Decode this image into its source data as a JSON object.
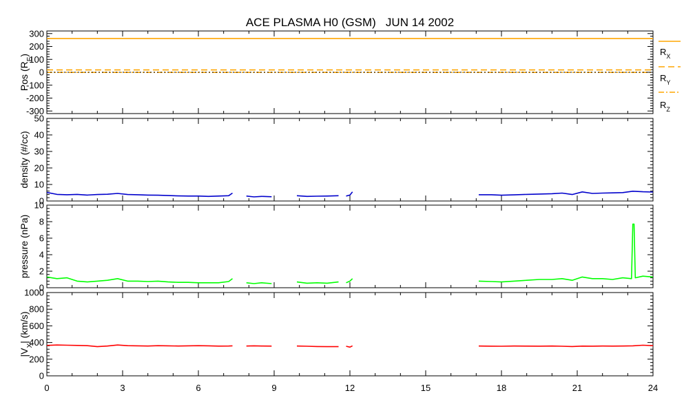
{
  "title": "ACE PLASMA H0 (GSM)   JUN 14 2002",
  "chart_data": [
    {
      "type": "line",
      "ylabel_main": "Pos (R",
      "ylabel_sub": "E",
      "ylabel_end": ")",
      "ylim": [
        -320,
        320
      ],
      "yticks": [
        -300,
        -200,
        -100,
        0,
        100,
        200,
        300
      ],
      "legend_placement": "right",
      "legend": [
        {
          "name": "R",
          "sub": "X",
          "style": "solid"
        },
        {
          "name": "R",
          "sub": "Y",
          "style": "dashed"
        },
        {
          "name": "R",
          "sub": "Z",
          "style": "dashdot"
        }
      ],
      "series": [
        {
          "name": "R_X",
          "color": "#ffa500",
          "style": "solid",
          "x": [
            0,
            24
          ],
          "y": [
            262,
            262
          ]
        },
        {
          "name": "R_Y",
          "color": "#ffa500",
          "style": "dashed",
          "x": [
            0,
            24
          ],
          "y": [
            18,
            18
          ]
        },
        {
          "name": "R_Z",
          "color": "#ffa500",
          "style": "dashdot",
          "x": [
            0,
            24
          ],
          "y": [
            -1,
            -1
          ]
        },
        {
          "name": "zero",
          "color": "#000000",
          "style": "dotted",
          "x": [
            0,
            24
          ],
          "y": [
            0,
            0
          ]
        }
      ]
    },
    {
      "type": "line",
      "ylabel_main": "density (#/cc)",
      "ylim": [
        0,
        50
      ],
      "yticks": [
        0,
        10,
        20,
        30,
        40,
        50
      ],
      "series": [
        {
          "color": "#0000cc",
          "segments": [
            {
              "x": [
                0.0,
                0.4,
                0.8,
                1.2,
                1.6,
                2.0,
                2.4,
                2.8,
                3.2,
                3.6,
                4.0,
                4.4,
                4.8,
                5.2,
                5.6,
                6.0,
                6.4,
                6.8,
                7.2,
                7.35
              ],
              "y": [
                5.2,
                4.0,
                3.8,
                4.0,
                3.6,
                3.9,
                4.1,
                4.6,
                3.9,
                3.8,
                3.6,
                3.5,
                3.3,
                3.1,
                3.0,
                3.0,
                2.8,
                3.0,
                3.2,
                4.8
              ]
            },
            {
              "x": [
                7.9,
                8.2,
                8.5,
                8.9
              ],
              "y": [
                3.0,
                2.5,
                2.8,
                2.6
              ]
            },
            {
              "x": [
                9.9,
                10.3,
                10.7,
                11.1,
                11.55
              ],
              "y": [
                3.2,
                2.8,
                2.9,
                3.0,
                3.2
              ]
            },
            {
              "x": [
                11.85,
                12.0,
                12.1
              ],
              "y": [
                3.0,
                3.6,
                5.5
              ]
            },
            {
              "x": [
                17.1,
                17.6,
                18.0,
                18.5,
                19.0,
                19.5,
                20.0,
                20.4,
                20.8,
                21.2,
                21.6,
                22.0,
                22.4,
                22.8,
                23.2,
                23.6,
                24.0
              ],
              "y": [
                3.8,
                3.8,
                3.5,
                3.7,
                4.0,
                4.2,
                4.4,
                4.8,
                3.9,
                5.5,
                4.6,
                4.8,
                4.9,
                5.1,
                5.9,
                5.6,
                5.4
              ]
            }
          ]
        }
      ]
    },
    {
      "type": "line",
      "ylabel_main": "pressure (nPa)",
      "ylim": [
        0,
        10
      ],
      "yticks": [
        0,
        2,
        4,
        6,
        8,
        10
      ],
      "series": [
        {
          "color": "#00ff00",
          "segments": [
            {
              "x": [
                0.0,
                0.4,
                0.8,
                1.2,
                1.6,
                2.0,
                2.4,
                2.8,
                3.2,
                3.6,
                4.0,
                4.4,
                4.8,
                5.2,
                5.6,
                6.0,
                6.4,
                6.8,
                7.2,
                7.35
              ],
              "y": [
                1.3,
                1.1,
                1.2,
                0.8,
                0.7,
                0.8,
                0.9,
                1.1,
                0.8,
                0.8,
                0.75,
                0.8,
                0.7,
                0.65,
                0.65,
                0.6,
                0.6,
                0.6,
                0.75,
                1.1
              ]
            },
            {
              "x": [
                7.9,
                8.2,
                8.5,
                8.9
              ],
              "y": [
                0.6,
                0.5,
                0.6,
                0.5
              ]
            },
            {
              "x": [
                9.9,
                10.3,
                10.7,
                11.1,
                11.55
              ],
              "y": [
                0.7,
                0.55,
                0.6,
                0.55,
                0.7
              ]
            },
            {
              "x": [
                11.85,
                12.0,
                12.1
              ],
              "y": [
                0.6,
                0.8,
                1.1
              ]
            },
            {
              "x": [
                17.1,
                17.6,
                18.0,
                18.5,
                19.0,
                19.5,
                20.0,
                20.4,
                20.8,
                21.2,
                21.6,
                22.0,
                22.4,
                22.8,
                23.15,
                23.2,
                23.25,
                23.3,
                23.6,
                24.0
              ],
              "y": [
                0.8,
                0.75,
                0.7,
                0.8,
                0.9,
                1.0,
                1.0,
                1.1,
                0.9,
                1.3,
                1.1,
                1.1,
                1.0,
                1.2,
                1.1,
                7.7,
                7.7,
                1.2,
                1.4,
                1.3
              ]
            }
          ]
        }
      ]
    },
    {
      "type": "line",
      "ylabel_main": "|V",
      "ylabel_sub": "X",
      "ylabel_end": "| (km/s)",
      "ylim": [
        0,
        1000
      ],
      "yticks": [
        0,
        200,
        400,
        600,
        800,
        1000
      ],
      "series": [
        {
          "color": "#ff0000",
          "segments": [
            {
              "x": [
                0.0,
                0.4,
                0.8,
                1.2,
                1.6,
                2.0,
                2.4,
                2.8,
                3.2,
                3.6,
                4.0,
                4.4,
                4.8,
                5.2,
                5.6,
                6.0,
                6.4,
                6.8,
                7.2,
                7.35
              ],
              "y": [
                365,
                370,
                368,
                365,
                362,
                350,
                358,
                370,
                362,
                360,
                358,
                362,
                360,
                358,
                360,
                362,
                360,
                357,
                358,
                360
              ]
            },
            {
              "x": [
                7.9,
                8.2,
                8.5,
                8.9
              ],
              "y": [
                358,
                360,
                358,
                357
              ]
            },
            {
              "x": [
                9.9,
                10.3,
                10.7,
                11.1,
                11.55
              ],
              "y": [
                358,
                355,
                352,
                350,
                350
              ]
            },
            {
              "x": [
                11.85,
                12.0,
                12.1
              ],
              "y": [
                355,
                345,
                360
              ]
            },
            {
              "x": [
                17.1,
                17.6,
                18.0,
                18.5,
                19.0,
                19.5,
                20.0,
                20.4,
                20.8,
                21.2,
                21.6,
                22.0,
                22.4,
                22.8,
                23.2,
                23.6,
                24.0
              ],
              "y": [
                358,
                356,
                355,
                358,
                357,
                356,
                358,
                355,
                352,
                357,
                356,
                358,
                357,
                358,
                360,
                368,
                362
              ]
            }
          ]
        }
      ]
    }
  ],
  "xaxis": {
    "xlim": [
      0,
      24
    ],
    "ticks": [
      0,
      3,
      6,
      9,
      12,
      15,
      18,
      21,
      24
    ],
    "minor_step": 1
  }
}
